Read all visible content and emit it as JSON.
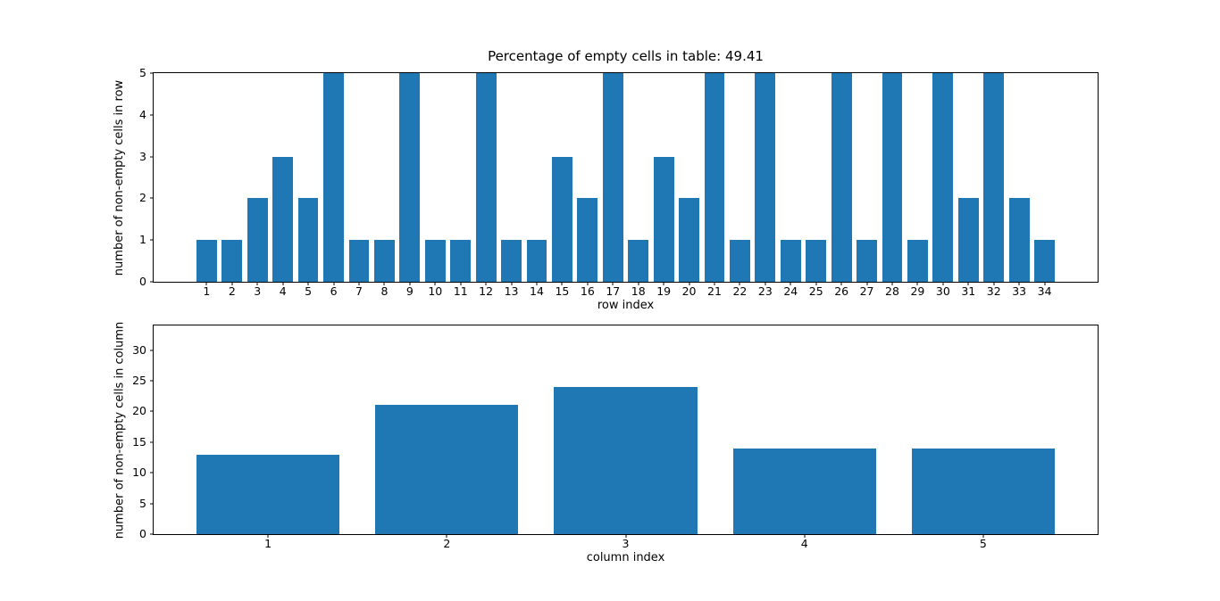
{
  "figure": {
    "background_color": "#ffffff",
    "bar_color": "#1f77b4",
    "spine_color": "#000000",
    "text_color": "#000000"
  },
  "chart_data": [
    {
      "type": "bar",
      "title": "Percentage of empty cells in table: 49.41",
      "xlabel": "row index",
      "ylabel": "number of non-empty cells in row",
      "categories": [
        1,
        2,
        3,
        4,
        5,
        6,
        7,
        8,
        9,
        10,
        11,
        12,
        13,
        14,
        15,
        16,
        17,
        18,
        19,
        20,
        21,
        22,
        23,
        24,
        25,
        26,
        27,
        28,
        29,
        30,
        31,
        32,
        33,
        34
      ],
      "values": [
        1,
        1,
        2,
        3,
        2,
        5,
        1,
        1,
        5,
        1,
        1,
        5,
        1,
        1,
        3,
        2,
        5,
        1,
        3,
        2,
        5,
        1,
        5,
        1,
        1,
        5,
        1,
        5,
        1,
        5,
        2,
        5,
        2,
        1
      ],
      "ylim": [
        0,
        5
      ],
      "yticks": [
        0,
        1,
        2,
        3,
        4,
        5
      ],
      "xlim": [
        -1.09,
        36.09
      ],
      "bar_width_units": 0.8,
      "grid": false,
      "legend": "none"
    },
    {
      "type": "bar",
      "title": "",
      "xlabel": "column index",
      "ylabel": "number of non-empty cells in column",
      "categories": [
        1,
        2,
        3,
        4,
        5
      ],
      "values": [
        13,
        21,
        24,
        14,
        14
      ],
      "ylim": [
        0,
        34
      ],
      "yticks": [
        0,
        5,
        10,
        15,
        20,
        25,
        30
      ],
      "xlim": [
        0.36,
        5.64
      ],
      "bar_width_units": 0.8,
      "grid": false,
      "legend": "none"
    }
  ]
}
